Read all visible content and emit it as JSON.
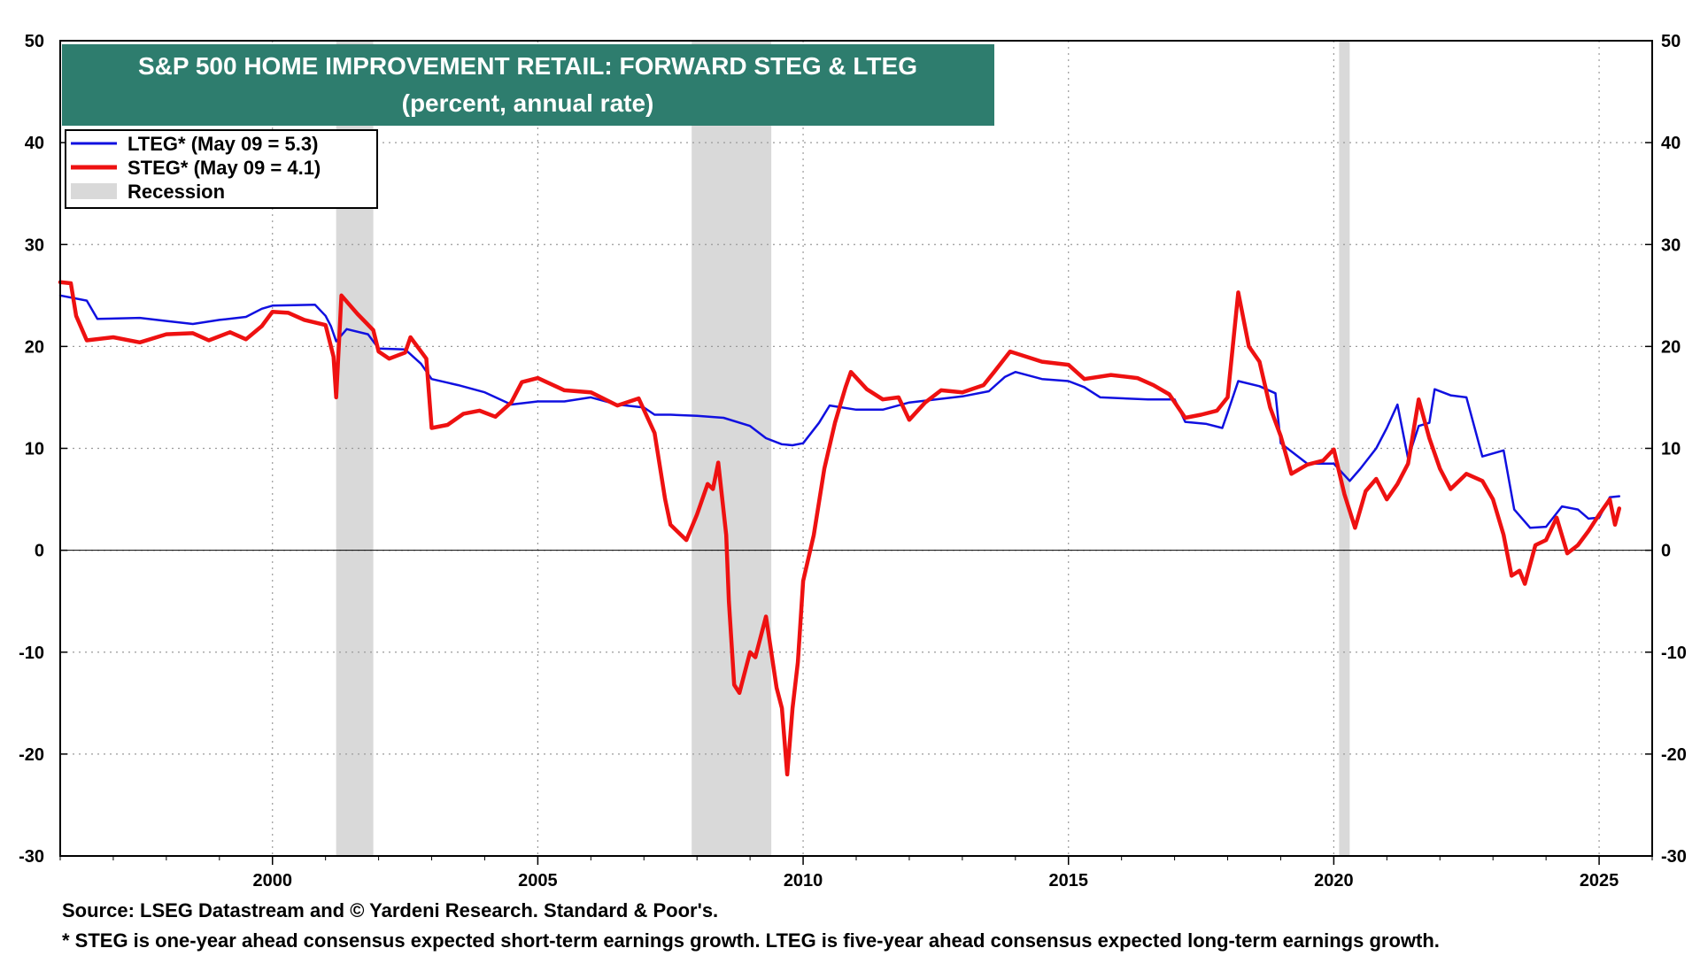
{
  "chart_data": {
    "type": "line",
    "title": "S&P 500 HOME IMPROVEMENT RETAIL: FORWARD STEG & LTEG",
    "subtitle": "(percent, annual rate)",
    "xlabel": "",
    "ylabel": "",
    "xlim": [
      1996.0,
      2026.0
    ],
    "ylim": [
      -30,
      50
    ],
    "yticks": [
      50,
      40,
      30,
      20,
      10,
      0,
      -10,
      -20,
      -30
    ],
    "ytick_labels": [
      "50",
      "40",
      "30",
      "20",
      "10",
      "0",
      "-10",
      "-20",
      "-30"
    ],
    "xticks": [
      2000,
      2005,
      2010,
      2015,
      2020,
      2025
    ],
    "xtick_labels": [
      "2000",
      "2005",
      "2010",
      "2015",
      "2020",
      "2025"
    ],
    "grid": true,
    "legend_position": "top-left",
    "recessions": [
      [
        2001.2,
        2001.9
      ],
      [
        2007.9,
        2009.4
      ],
      [
        2020.1,
        2020.3
      ]
    ],
    "series": [
      {
        "name": "LTEG* (May 09 = 5.3)",
        "color": "#1010e0",
        "points": [
          [
            1996.0,
            25.0
          ],
          [
            1996.5,
            24.5
          ],
          [
            1996.7,
            22.7
          ],
          [
            1997.5,
            22.8
          ],
          [
            1998.0,
            22.5
          ],
          [
            1998.5,
            22.2
          ],
          [
            1999.0,
            22.6
          ],
          [
            1999.5,
            22.9
          ],
          [
            1999.8,
            23.7
          ],
          [
            2000.0,
            24.0
          ],
          [
            2000.8,
            24.1
          ],
          [
            2001.0,
            23.0
          ],
          [
            2001.1,
            22.0
          ],
          [
            2001.2,
            20.5
          ],
          [
            2001.4,
            21.7
          ],
          [
            2001.8,
            21.2
          ],
          [
            2002.0,
            19.8
          ],
          [
            2002.5,
            19.7
          ],
          [
            2002.8,
            18.3
          ],
          [
            2003.0,
            16.8
          ],
          [
            2003.5,
            16.2
          ],
          [
            2004.0,
            15.5
          ],
          [
            2004.5,
            14.3
          ],
          [
            2005.0,
            14.6
          ],
          [
            2005.5,
            14.6
          ],
          [
            2006.0,
            15.0
          ],
          [
            2006.5,
            14.3
          ],
          [
            2007.0,
            14.0
          ],
          [
            2007.2,
            13.3
          ],
          [
            2007.5,
            13.3
          ],
          [
            2008.0,
            13.2
          ],
          [
            2008.5,
            13.0
          ],
          [
            2009.0,
            12.2
          ],
          [
            2009.3,
            11.0
          ],
          [
            2009.6,
            10.4
          ],
          [
            2009.8,
            10.3
          ],
          [
            2010.0,
            10.5
          ],
          [
            2010.3,
            12.5
          ],
          [
            2010.5,
            14.2
          ],
          [
            2011.0,
            13.8
          ],
          [
            2011.5,
            13.8
          ],
          [
            2012.0,
            14.5
          ],
          [
            2012.5,
            14.8
          ],
          [
            2013.0,
            15.1
          ],
          [
            2013.5,
            15.6
          ],
          [
            2013.8,
            17.0
          ],
          [
            2014.0,
            17.5
          ],
          [
            2014.5,
            16.8
          ],
          [
            2015.0,
            16.6
          ],
          [
            2015.3,
            16.0
          ],
          [
            2015.6,
            15.0
          ],
          [
            2016.5,
            14.8
          ],
          [
            2017.0,
            14.8
          ],
          [
            2017.2,
            12.6
          ],
          [
            2017.6,
            12.4
          ],
          [
            2017.9,
            12.0
          ],
          [
            2018.0,
            13.5
          ],
          [
            2018.2,
            16.6
          ],
          [
            2018.6,
            16.1
          ],
          [
            2018.9,
            15.4
          ],
          [
            2019.0,
            10.5
          ],
          [
            2019.5,
            8.5
          ],
          [
            2020.0,
            8.5
          ],
          [
            2020.3,
            6.8
          ],
          [
            2020.5,
            8.0
          ],
          [
            2020.8,
            10.0
          ],
          [
            2021.0,
            12.0
          ],
          [
            2021.2,
            14.3
          ],
          [
            2021.4,
            9.0
          ],
          [
            2021.6,
            12.2
          ],
          [
            2021.8,
            12.5
          ],
          [
            2021.9,
            15.8
          ],
          [
            2022.2,
            15.2
          ],
          [
            2022.5,
            15.0
          ],
          [
            2022.8,
            9.2
          ],
          [
            2023.2,
            9.8
          ],
          [
            2023.4,
            4.0
          ],
          [
            2023.7,
            2.2
          ],
          [
            2024.0,
            2.3
          ],
          [
            2024.3,
            4.3
          ],
          [
            2024.6,
            4.0
          ],
          [
            2024.8,
            3.1
          ],
          [
            2025.0,
            3.2
          ],
          [
            2025.2,
            5.2
          ],
          [
            2025.38,
            5.3
          ]
        ]
      },
      {
        "name": "STEG* (May 09 = 4.1)",
        "color": "#ee1111",
        "points": [
          [
            1996.0,
            26.3
          ],
          [
            1996.2,
            26.2
          ],
          [
            1996.3,
            23.0
          ],
          [
            1996.5,
            20.6
          ],
          [
            1997.0,
            20.9
          ],
          [
            1997.5,
            20.4
          ],
          [
            1998.0,
            21.2
          ],
          [
            1998.5,
            21.3
          ],
          [
            1998.8,
            20.6
          ],
          [
            1999.2,
            21.4
          ],
          [
            1999.5,
            20.7
          ],
          [
            1999.8,
            22.0
          ],
          [
            2000.0,
            23.4
          ],
          [
            2000.3,
            23.3
          ],
          [
            2000.6,
            22.6
          ],
          [
            2001.0,
            22.1
          ],
          [
            2001.15,
            19.0
          ],
          [
            2001.2,
            15.0
          ],
          [
            2001.3,
            25.0
          ],
          [
            2001.6,
            23.2
          ],
          [
            2001.9,
            21.6
          ],
          [
            2002.0,
            19.5
          ],
          [
            2002.2,
            18.8
          ],
          [
            2002.5,
            19.4
          ],
          [
            2002.6,
            20.9
          ],
          [
            2002.9,
            18.8
          ],
          [
            2003.0,
            12.0
          ],
          [
            2003.3,
            12.3
          ],
          [
            2003.6,
            13.4
          ],
          [
            2003.9,
            13.7
          ],
          [
            2004.2,
            13.1
          ],
          [
            2004.5,
            14.5
          ],
          [
            2004.7,
            16.5
          ],
          [
            2005.0,
            16.9
          ],
          [
            2005.5,
            15.7
          ],
          [
            2006.0,
            15.5
          ],
          [
            2006.5,
            14.2
          ],
          [
            2006.9,
            14.9
          ],
          [
            2007.2,
            11.5
          ],
          [
            2007.4,
            5.0
          ],
          [
            2007.5,
            2.5
          ],
          [
            2007.6,
            2.0
          ],
          [
            2007.8,
            1.0
          ],
          [
            2008.0,
            3.5
          ],
          [
            2008.2,
            6.5
          ],
          [
            2008.3,
            6.0
          ],
          [
            2008.4,
            8.6
          ],
          [
            2008.55,
            1.5
          ],
          [
            2008.6,
            -5.0
          ],
          [
            2008.7,
            -13.2
          ],
          [
            2008.8,
            -14.0
          ],
          [
            2009.0,
            -10.0
          ],
          [
            2009.1,
            -10.5
          ],
          [
            2009.2,
            -8.5
          ],
          [
            2009.3,
            -6.5
          ],
          [
            2009.4,
            -10.0
          ],
          [
            2009.5,
            -13.5
          ],
          [
            2009.6,
            -15.5
          ],
          [
            2009.7,
            -22.0
          ],
          [
            2009.8,
            -15.5
          ],
          [
            2009.9,
            -11.0
          ],
          [
            2010.0,
            -3.0
          ],
          [
            2010.2,
            1.5
          ],
          [
            2010.4,
            8.0
          ],
          [
            2010.6,
            12.5
          ],
          [
            2010.8,
            16.0
          ],
          [
            2010.9,
            17.5
          ],
          [
            2011.2,
            15.8
          ],
          [
            2011.5,
            14.8
          ],
          [
            2011.8,
            15.0
          ],
          [
            2012.0,
            12.8
          ],
          [
            2012.3,
            14.5
          ],
          [
            2012.6,
            15.7
          ],
          [
            2013.0,
            15.5
          ],
          [
            2013.4,
            16.2
          ],
          [
            2013.6,
            17.5
          ],
          [
            2013.9,
            19.5
          ],
          [
            2014.5,
            18.5
          ],
          [
            2015.0,
            18.2
          ],
          [
            2015.3,
            16.8
          ],
          [
            2015.8,
            17.2
          ],
          [
            2016.3,
            16.9
          ],
          [
            2016.6,
            16.2
          ],
          [
            2016.9,
            15.3
          ],
          [
            2017.2,
            13.0
          ],
          [
            2017.5,
            13.3
          ],
          [
            2017.8,
            13.7
          ],
          [
            2018.0,
            15.0
          ],
          [
            2018.2,
            25.3
          ],
          [
            2018.4,
            20.0
          ],
          [
            2018.6,
            18.5
          ],
          [
            2018.8,
            14.0
          ],
          [
            2019.0,
            11.2
          ],
          [
            2019.2,
            7.5
          ],
          [
            2019.5,
            8.4
          ],
          [
            2019.8,
            8.8
          ],
          [
            2020.0,
            9.9
          ],
          [
            2020.2,
            5.5
          ],
          [
            2020.4,
            2.2
          ],
          [
            2020.6,
            5.8
          ],
          [
            2020.8,
            7.0
          ],
          [
            2021.0,
            5.0
          ],
          [
            2021.2,
            6.5
          ],
          [
            2021.4,
            8.5
          ],
          [
            2021.6,
            14.8
          ],
          [
            2021.8,
            11.0
          ],
          [
            2022.0,
            8.0
          ],
          [
            2022.2,
            6.0
          ],
          [
            2022.5,
            7.5
          ],
          [
            2022.8,
            6.8
          ],
          [
            2023.0,
            5.0
          ],
          [
            2023.2,
            1.5
          ],
          [
            2023.35,
            -2.5
          ],
          [
            2023.5,
            -2.0
          ],
          [
            2023.6,
            -3.3
          ],
          [
            2023.8,
            0.5
          ],
          [
            2024.0,
            1.0
          ],
          [
            2024.2,
            3.2
          ],
          [
            2024.4,
            -0.3
          ],
          [
            2024.6,
            0.5
          ],
          [
            2024.8,
            1.9
          ],
          [
            2025.0,
            3.5
          ],
          [
            2025.2,
            5.0
          ],
          [
            2025.3,
            2.5
          ],
          [
            2025.38,
            4.1
          ]
        ]
      }
    ],
    "legend": [
      {
        "label": "LTEG* (May 09 = 5.3)",
        "kind": "line",
        "color": "#1010e0"
      },
      {
        "label": "STEG* (May 09 = 4.1)",
        "kind": "line",
        "color": "#ee1111"
      },
      {
        "label": "Recession",
        "kind": "box",
        "color": "#d9d9d9"
      }
    ]
  },
  "footnotes": {
    "source": "Source: LSEG Datastream and © Yardeni Research. Standard & Poor's.",
    "note": "* STEG is one-year ahead consensus expected short-term earnings growth. LTEG is five-year ahead consensus expected long-term earnings growth."
  },
  "colors": {
    "title_band": "#2e7d6e",
    "recession": "#d9d9d9",
    "grid": "#9a9a9a"
  }
}
